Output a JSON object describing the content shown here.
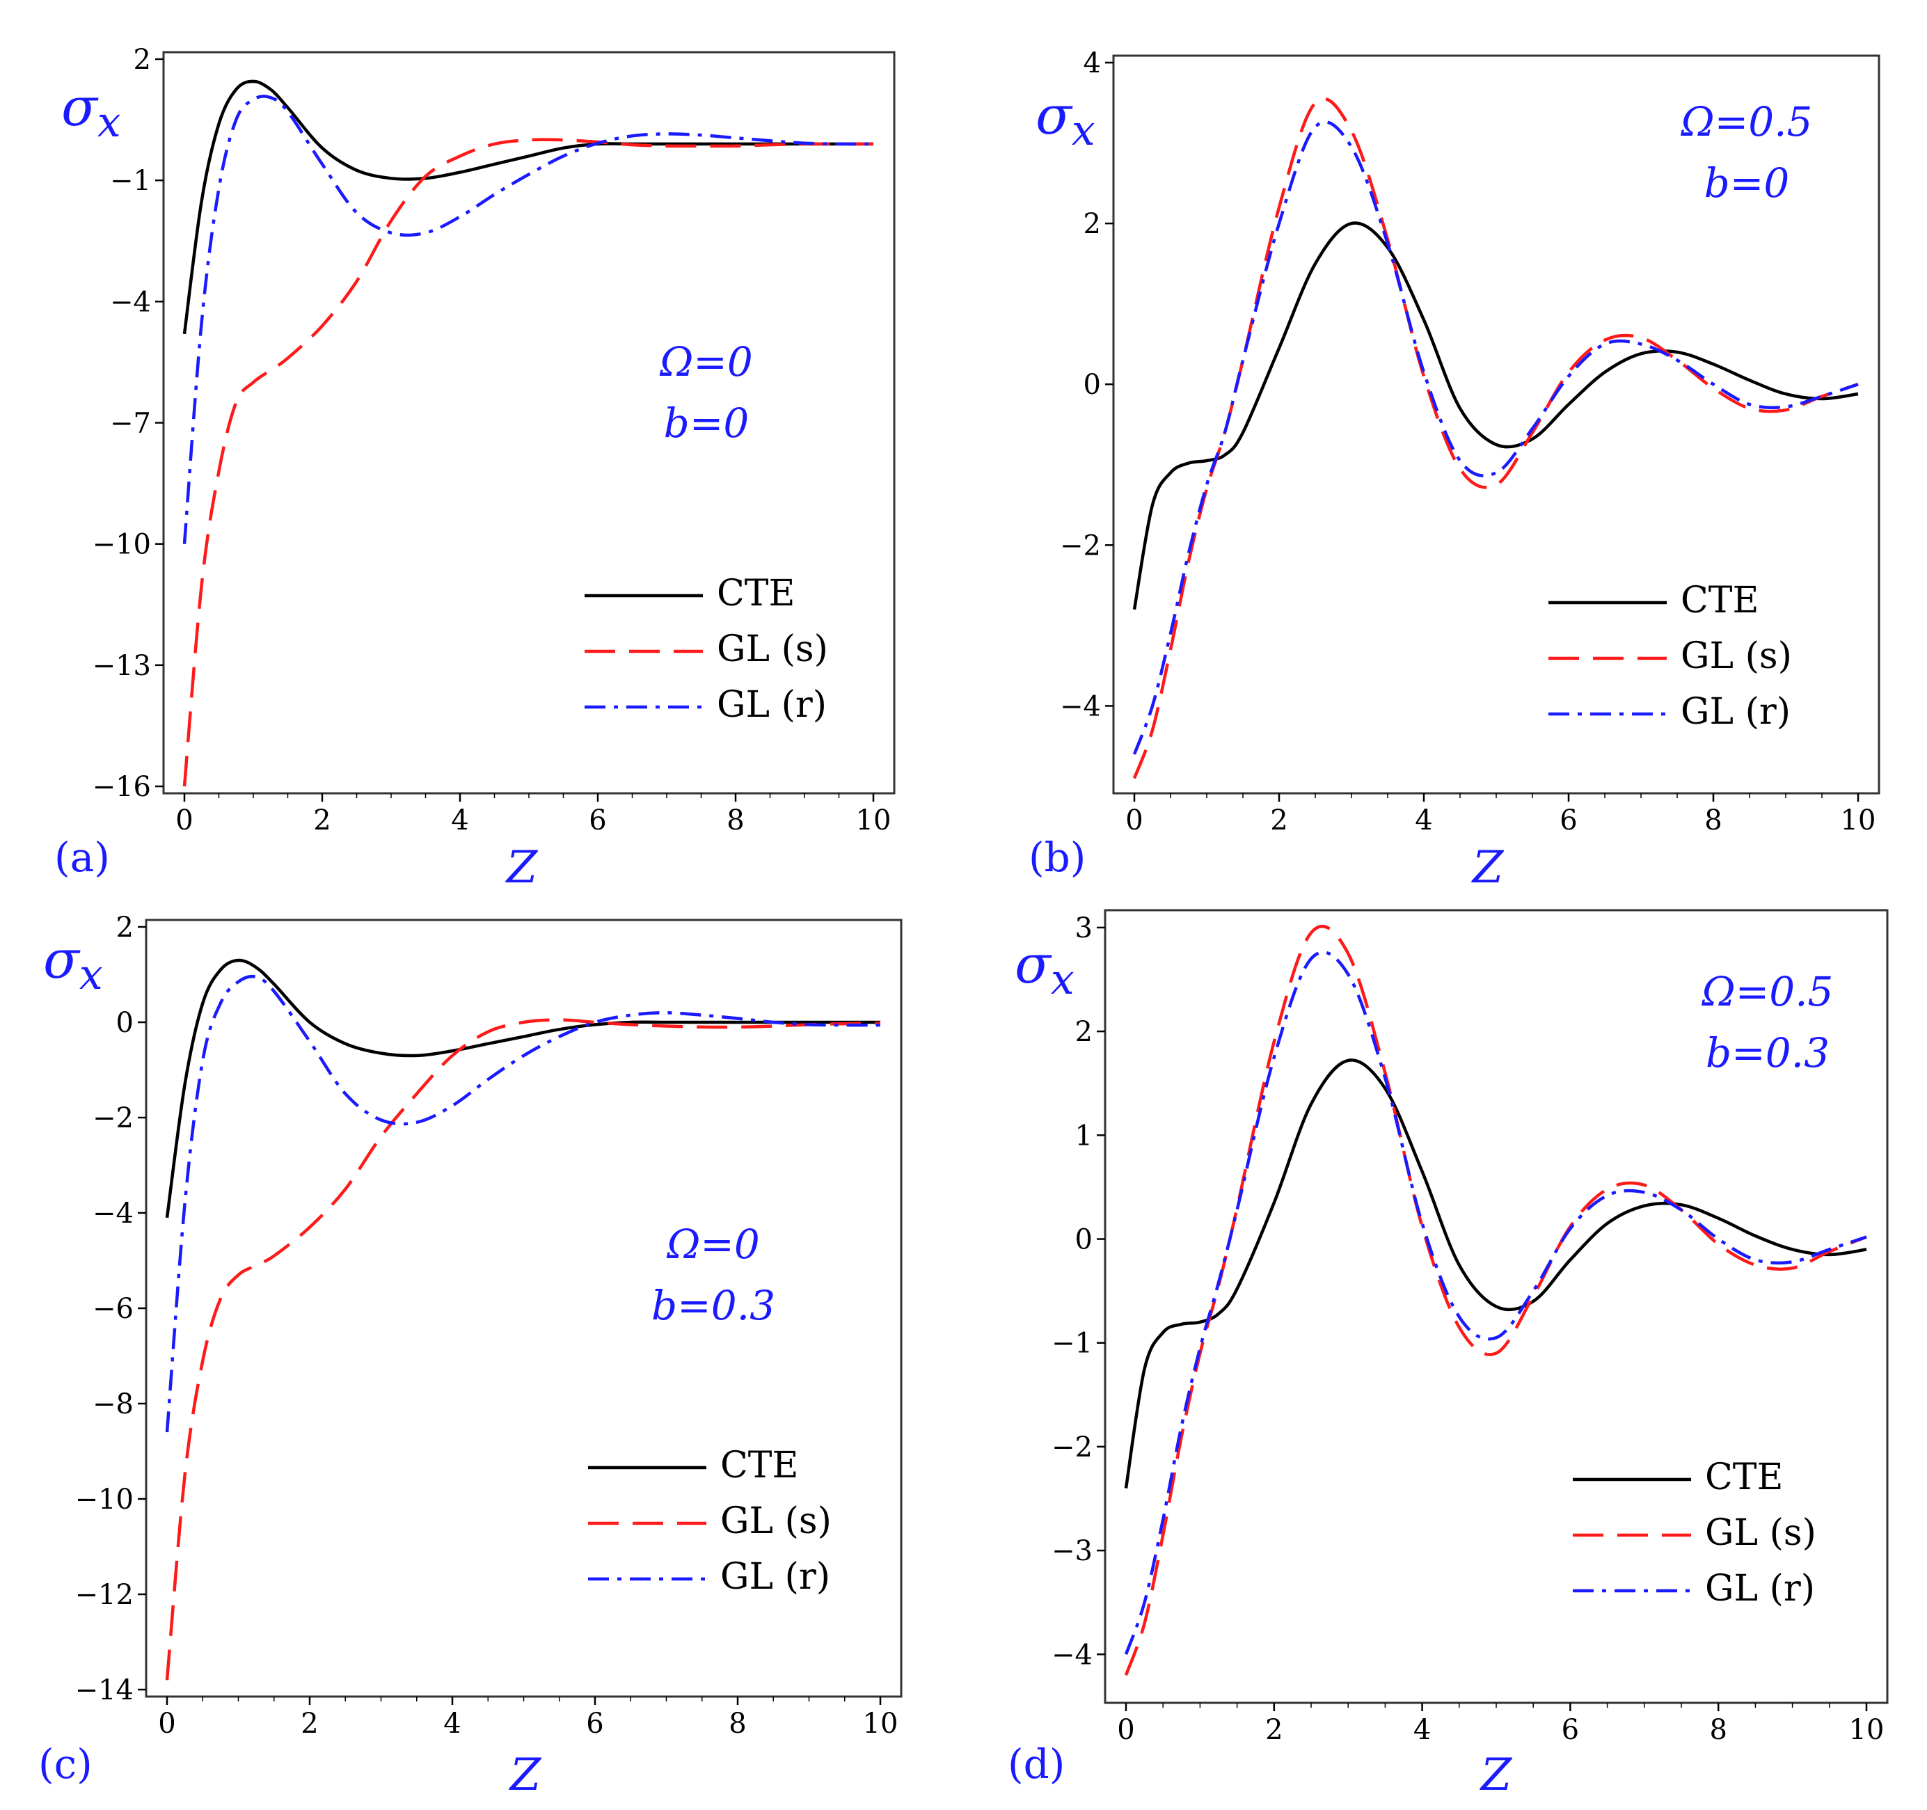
{
  "legend_labels": [
    "CTE",
    "GL (s)",
    "GL (r)"
  ],
  "colors": {
    "CTE": "#000000",
    "GL (s)": "#ff1a1a",
    "GL (r)": "#1a1aff",
    "text": "#1a1aff"
  },
  "chart_data": [
    {
      "type": "line",
      "panel_label": "(a)",
      "xlabel": "Z",
      "ylabel": "σx",
      "annotations": [
        "Ω=0",
        "b=0"
      ],
      "xlim": [
        0,
        10
      ],
      "ylim": [
        -16,
        2
      ],
      "xticks": [
        0,
        2,
        4,
        6,
        8,
        10
      ],
      "yticks": [
        2,
        -1,
        -4,
        -7,
        -10,
        -13,
        -16
      ],
      "x": [
        0,
        0.25,
        0.5,
        0.75,
        1,
        1.25,
        1.5,
        2,
        2.5,
        3,
        3.5,
        4,
        4.5,
        5,
        5.5,
        6,
        6.5,
        7,
        7.5,
        8,
        8.5,
        9,
        9.5,
        10
      ],
      "series": [
        {
          "name": "CTE",
          "values": [
            -4.8,
            -1.5,
            0.4,
            1.25,
            1.45,
            1.25,
            0.8,
            -0.2,
            -0.75,
            -0.95,
            -0.95,
            -0.8,
            -0.6,
            -0.4,
            -0.2,
            -0.1,
            -0.1,
            -0.1,
            -0.1,
            -0.1,
            -0.1,
            -0.1,
            -0.1,
            -0.1
          ]
        },
        {
          "name": "GL (s)",
          "values": [
            -16,
            -11,
            -8.2,
            -6.5,
            -6.0,
            -5.7,
            -5.4,
            -4.6,
            -3.5,
            -2.0,
            -0.9,
            -0.4,
            -0.1,
            0.0,
            0.0,
            -0.05,
            -0.12,
            -0.15,
            -0.15,
            -0.15,
            -0.12,
            -0.1,
            -0.1,
            -0.1
          ]
        },
        {
          "name": "GL (r)",
          "values": [
            -10,
            -4.5,
            -1.2,
            0.5,
            1.0,
            1.05,
            0.7,
            -0.6,
            -1.8,
            -2.3,
            -2.3,
            -1.9,
            -1.35,
            -0.85,
            -0.4,
            -0.08,
            0.1,
            0.15,
            0.12,
            0.05,
            -0.02,
            -0.08,
            -0.1,
            -0.1
          ]
        }
      ]
    },
    {
      "type": "line",
      "panel_label": "(b)",
      "xlabel": "Z",
      "ylabel": "σx",
      "annotations": [
        "Ω=0.5",
        "b=0"
      ],
      "xlim": [
        0,
        10
      ],
      "ylim": [
        -5,
        4
      ],
      "xticks": [
        0,
        2,
        4,
        6,
        8,
        10
      ],
      "yticks": [
        4,
        2,
        0,
        -2,
        -4
      ],
      "x": [
        0,
        0.25,
        0.5,
        0.75,
        1,
        1.25,
        1.5,
        2,
        2.5,
        3,
        3.5,
        4,
        4.5,
        5,
        5.5,
        6,
        6.5,
        7,
        7.5,
        8,
        8.5,
        9,
        9.5,
        10
      ],
      "series": [
        {
          "name": "CTE",
          "values": [
            -2.8,
            -1.5,
            -1.1,
            -0.98,
            -0.95,
            -0.88,
            -0.6,
            0.45,
            1.5,
            2.0,
            1.7,
            0.8,
            -0.3,
            -0.75,
            -0.68,
            -0.25,
            0.15,
            0.38,
            0.4,
            0.25,
            0.05,
            -0.12,
            -0.18,
            -0.12
          ]
        },
        {
          "name": "GL (s)",
          "values": [
            -4.9,
            -4.3,
            -3.3,
            -2.2,
            -1.3,
            -0.6,
            0.3,
            2.2,
            3.5,
            3.15,
            1.8,
            0.1,
            -1.05,
            -1.25,
            -0.6,
            0.15,
            0.55,
            0.58,
            0.3,
            -0.05,
            -0.3,
            -0.32,
            -0.15,
            0.0
          ]
        },
        {
          "name": "GL (r)",
          "values": [
            -4.6,
            -4.0,
            -3.1,
            -2.1,
            -1.25,
            -0.6,
            0.3,
            2.0,
            3.2,
            2.95,
            1.75,
            0.15,
            -0.95,
            -1.1,
            -0.55,
            0.1,
            0.5,
            0.5,
            0.3,
            0.0,
            -0.25,
            -0.28,
            -0.15,
            0.0
          ]
        }
      ]
    },
    {
      "type": "line",
      "panel_label": "(c)",
      "xlabel": "Z",
      "ylabel": "σx",
      "annotations": [
        "Ω=0",
        "b=0.3"
      ],
      "xlim": [
        0,
        10
      ],
      "ylim": [
        -14,
        2
      ],
      "xticks": [
        0,
        2,
        4,
        6,
        8,
        10
      ],
      "yticks": [
        2,
        0,
        -2,
        -4,
        -6,
        -8,
        -10,
        -12,
        -14
      ],
      "x": [
        0,
        0.25,
        0.5,
        0.75,
        1,
        1.25,
        1.5,
        2,
        2.5,
        3,
        3.5,
        4,
        4.5,
        5,
        5.5,
        6,
        6.5,
        7,
        7.5,
        8,
        8.5,
        9,
        9.5,
        10
      ],
      "series": [
        {
          "name": "CTE",
          "values": [
            -4.1,
            -1.3,
            0.4,
            1.1,
            1.3,
            1.15,
            0.8,
            0.0,
            -0.45,
            -0.65,
            -0.7,
            -0.6,
            -0.45,
            -0.3,
            -0.15,
            -0.05,
            0.0,
            0.0,
            0.0,
            0.0,
            0.0,
            0.0,
            0.0,
            0.0
          ]
        },
        {
          "name": "GL (s)",
          "values": [
            -13.8,
            -9.5,
            -7.1,
            -5.8,
            -5.3,
            -5.1,
            -4.9,
            -4.3,
            -3.5,
            -2.4,
            -1.5,
            -0.7,
            -0.2,
            0.0,
            0.05,
            0.0,
            -0.05,
            -0.08,
            -0.1,
            -0.1,
            -0.08,
            -0.05,
            -0.03,
            -0.02
          ]
        },
        {
          "name": "GL (r)",
          "values": [
            -8.6,
            -3.8,
            -0.8,
            0.4,
            0.85,
            0.95,
            0.65,
            -0.4,
            -1.5,
            -2.05,
            -2.1,
            -1.75,
            -1.2,
            -0.7,
            -0.3,
            0.0,
            0.15,
            0.2,
            0.15,
            0.08,
            0.0,
            -0.05,
            -0.06,
            -0.06
          ]
        }
      ]
    },
    {
      "type": "line",
      "panel_label": "(d)",
      "xlabel": "Z",
      "ylabel": "σx",
      "annotations": [
        "Ω=0.5",
        "b=0.3"
      ],
      "xlim": [
        0,
        10
      ],
      "ylim": [
        -4.4,
        3.1
      ],
      "xticks": [
        0,
        2,
        4,
        6,
        8,
        10
      ],
      "yticks": [
        3,
        2,
        1,
        0,
        -1,
        -2,
        -3,
        -4
      ],
      "x": [
        0,
        0.25,
        0.5,
        0.75,
        1,
        1.25,
        1.5,
        2,
        2.5,
        3,
        3.5,
        4,
        4.5,
        5,
        5.5,
        6,
        6.5,
        7,
        7.5,
        8,
        8.5,
        9,
        9.5,
        10
      ],
      "series": [
        {
          "name": "CTE",
          "values": [
            -2.4,
            -1.25,
            -0.9,
            -0.82,
            -0.8,
            -0.72,
            -0.48,
            0.35,
            1.3,
            1.72,
            1.45,
            0.65,
            -0.25,
            -0.65,
            -0.6,
            -0.2,
            0.15,
            0.32,
            0.33,
            0.2,
            0.03,
            -0.1,
            -0.15,
            -0.1
          ]
        },
        {
          "name": "GL (s)",
          "values": [
            -4.2,
            -3.7,
            -2.85,
            -1.9,
            -1.1,
            -0.45,
            0.3,
            1.9,
            2.95,
            2.75,
            1.6,
            0.12,
            -0.85,
            -1.1,
            -0.55,
            0.12,
            0.48,
            0.52,
            0.28,
            -0.05,
            -0.25,
            -0.28,
            -0.12,
            0.02
          ]
        },
        {
          "name": "GL (r)",
          "values": [
            -4.0,
            -3.5,
            -2.7,
            -1.8,
            -1.05,
            -0.42,
            0.28,
            1.75,
            2.7,
            2.55,
            1.55,
            0.15,
            -0.75,
            -0.95,
            -0.5,
            0.1,
            0.42,
            0.45,
            0.28,
            0.0,
            -0.2,
            -0.22,
            -0.1,
            0.02
          ]
        }
      ]
    }
  ]
}
